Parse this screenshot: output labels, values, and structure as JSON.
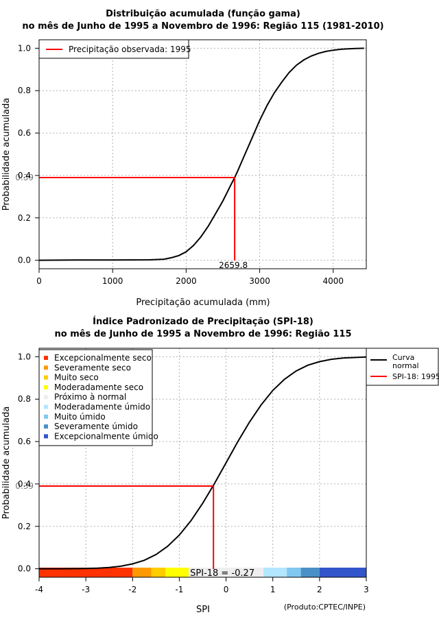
{
  "chart_data": [
    {
      "type": "line",
      "title": "Distribuição acumulada (função gama)",
      "subtitle": "no mês de Junho de 1995 a Novembro de 1996: Região 115 (1981-2010)",
      "xlabel": "Precipitação acumulada (mm)",
      "ylabel": "Probabilidade acumulada",
      "xlim": [
        0,
        4450
      ],
      "ylim": [
        -0.04,
        1.04
      ],
      "xticks": [
        "0",
        "1000",
        "2000",
        "3000",
        "4000"
      ],
      "xtick_values": [
        0,
        1000,
        2000,
        3000,
        4000
      ],
      "yticks": [
        "0.0",
        "0.2",
        "0.4",
        "0.6",
        "0.8",
        "1.0"
      ],
      "ytick_values": [
        0,
        0.2,
        0.4,
        0.6,
        0.8,
        1.0
      ],
      "grid": true,
      "series": [
        {
          "name": "Função gama",
          "color": "#000000",
          "x": [
            0,
            500,
            1000,
            1500,
            1700,
            1800,
            1900,
            2000,
            2100,
            2200,
            2300,
            2400,
            2500,
            2600,
            2659.8,
            2700,
            2800,
            2900,
            3000,
            3100,
            3200,
            3300,
            3400,
            3500,
            3600,
            3700,
            3800,
            3900,
            4000,
            4100,
            4200,
            4300,
            4420
          ],
          "y": [
            0,
            0.001,
            0.001,
            0.002,
            0.005,
            0.012,
            0.022,
            0.04,
            0.07,
            0.11,
            0.16,
            0.22,
            0.28,
            0.35,
            0.39,
            0.42,
            0.5,
            0.58,
            0.66,
            0.73,
            0.79,
            0.84,
            0.885,
            0.92,
            0.945,
            0.963,
            0.976,
            0.985,
            0.991,
            0.995,
            0.997,
            0.999,
            1.0
          ]
        }
      ],
      "marker": {
        "legend_label": "Precipitação observada: 1995",
        "x": 2659.8,
        "y": 0.39,
        "x_label": "2659.8",
        "y_label": "0.39",
        "color": "#ff0000"
      },
      "legend_position": "top-left"
    },
    {
      "type": "line",
      "title": "Índice Padronizado de Precipitação (SPI-18)",
      "subtitle": "no mês de Junho de 1995 a Novembro de 1996: Região 115",
      "xlabel": "SPI",
      "ylabel": "Probabilidade acumulada",
      "xlim": [
        -4,
        3
      ],
      "ylim": [
        -0.04,
        1.04
      ],
      "xticks": [
        "-4",
        "-3",
        "-2",
        "-1",
        "0",
        "1",
        "2",
        "3"
      ],
      "xtick_values": [
        -4,
        -3,
        -2,
        -1,
        0,
        1,
        2,
        3
      ],
      "yticks": [
        "0.0",
        "0.2",
        "0.4",
        "0.6",
        "0.8",
        "1.0"
      ],
      "ytick_values": [
        0,
        0.2,
        0.4,
        0.6,
        0.8,
        1.0
      ],
      "grid": true,
      "series": [
        {
          "name": "Curva normal",
          "color": "#000000",
          "x": [
            -4,
            -3.5,
            -3,
            -2.75,
            -2.5,
            -2.25,
            -2,
            -1.75,
            -1.5,
            -1.25,
            -1,
            -0.75,
            -0.5,
            -0.27,
            -0.25,
            0,
            0.25,
            0.5,
            0.75,
            1,
            1.25,
            1.5,
            1.75,
            2,
            2.25,
            2.5,
            3
          ],
          "y": [
            0.0,
            0.0002,
            0.0013,
            0.003,
            0.006,
            0.012,
            0.023,
            0.04,
            0.067,
            0.106,
            0.159,
            0.227,
            0.309,
            0.394,
            0.401,
            0.5,
            0.599,
            0.691,
            0.773,
            0.841,
            0.894,
            0.933,
            0.96,
            0.977,
            0.988,
            0.994,
            0.999
          ]
        }
      ],
      "marker": {
        "legend_label": "SPI-18: 1995",
        "x": -0.27,
        "y": 0.39,
        "y_label": "0.39",
        "color": "#ff0000"
      },
      "spi_label": "SPI-18 = -0.27",
      "curve_legend_label": "Curva normal",
      "classes": [
        {
          "label": "Excepcionalmente seco",
          "color": "#ff3300",
          "from": -4,
          "to": -2
        },
        {
          "label": "Severamente seco",
          "color": "#ff9900",
          "from": -2,
          "to": -1.6
        },
        {
          "label": "Muito seco",
          "color": "#ffcc00",
          "from": -1.6,
          "to": -1.3
        },
        {
          "label": "Moderadamente seco",
          "color": "#ffff00",
          "from": -1.3,
          "to": -0.8
        },
        {
          "label": "Próximo à normal",
          "color": "#eeeeee",
          "from": -0.8,
          "to": 0.8
        },
        {
          "label": "Moderadamente úmido",
          "color": "#b3e6ff",
          "from": 0.8,
          "to": 1.3
        },
        {
          "label": "Muito úmido",
          "color": "#80c8f0",
          "from": 1.3,
          "to": 1.6
        },
        {
          "label": "Severamente úmido",
          "color": "#4a90c8",
          "from": 1.6,
          "to": 2
        },
        {
          "label": "Excepcionalmente úmido",
          "color": "#3355cc",
          "from": 2,
          "to": 3
        }
      ],
      "credit": "(Produto:CPTEC/INPE)"
    }
  ]
}
